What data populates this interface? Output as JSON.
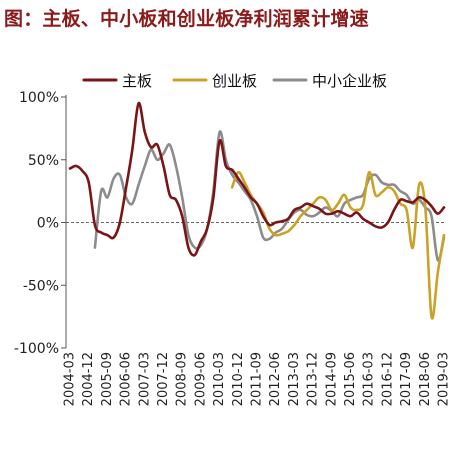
{
  "figure_title": "图：主板、中小板和创业板净利润累计增速",
  "title_color": "#8B1A1A",
  "chart_data": {
    "type": "line",
    "title": "",
    "xlabel": "",
    "ylabel": "",
    "ylim": [
      -100,
      100
    ],
    "yticks": [
      -100,
      -50,
      0,
      50,
      100
    ],
    "ytick_labels": [
      "-100%",
      "-50%",
      "0%",
      "50%",
      "100%"
    ],
    "grid": false,
    "legend_position": "top",
    "x_range": [
      "2004-03",
      "2019-03"
    ],
    "x_tick_labels": [
      "2004-03",
      "2004-12",
      "2005-09",
      "2006-06",
      "2007-03",
      "2007-12",
      "2008-09",
      "2009-06",
      "2010-03",
      "2010-12",
      "2011-09",
      "2012-06",
      "2013-03",
      "2013-12",
      "2014-09",
      "2015-06",
      "2016-03",
      "2016-12",
      "2017-09",
      "2018-06",
      "2019-03"
    ],
    "series": [
      {
        "name": "主板",
        "color": "#7B1416",
        "x": [
          "2004-03",
          "2004-06",
          "2004-09",
          "2004-12",
          "2005-03",
          "2005-06",
          "2005-09",
          "2005-12",
          "2006-03",
          "2006-06",
          "2006-09",
          "2006-12",
          "2007-03",
          "2007-06",
          "2007-09",
          "2007-12",
          "2008-03",
          "2008-06",
          "2008-09",
          "2008-12",
          "2009-03",
          "2009-06",
          "2009-09",
          "2009-12",
          "2010-03",
          "2010-06",
          "2010-09",
          "2010-12",
          "2011-03",
          "2011-06",
          "2011-09",
          "2011-12",
          "2012-03",
          "2012-06",
          "2012-09",
          "2012-12",
          "2013-03",
          "2013-06",
          "2013-09",
          "2013-12",
          "2014-03",
          "2014-06",
          "2014-09",
          "2014-12",
          "2015-03",
          "2015-06",
          "2015-09",
          "2015-12",
          "2016-03",
          "2016-06",
          "2016-09",
          "2016-12",
          "2017-03",
          "2017-06",
          "2017-09",
          "2017-12",
          "2018-03",
          "2018-06",
          "2018-09",
          "2018-12",
          "2019-03"
        ],
        "values": [
          43,
          45,
          41,
          32,
          -2,
          -8,
          -10,
          -12,
          0,
          28,
          58,
          95,
          72,
          60,
          62,
          45,
          22,
          18,
          5,
          -20,
          -26,
          -15,
          -5,
          20,
          65,
          45,
          42,
          35,
          28,
          20,
          15,
          5,
          -2,
          0,
          1,
          3,
          10,
          12,
          15,
          13,
          11,
          7,
          7,
          9,
          7,
          5,
          8,
          3,
          0,
          -3,
          -4,
          0,
          10,
          18,
          17,
          16,
          20,
          18,
          13,
          7,
          12
        ]
      },
      {
        "name": "创业板",
        "color": "#C9A227",
        "x": [
          "2010-09",
          "2010-12",
          "2011-03",
          "2011-06",
          "2011-09",
          "2011-12",
          "2012-03",
          "2012-06",
          "2012-09",
          "2012-12",
          "2013-03",
          "2013-06",
          "2013-09",
          "2013-12",
          "2014-03",
          "2014-06",
          "2014-09",
          "2014-12",
          "2015-03",
          "2015-06",
          "2015-09",
          "2015-12",
          "2016-03",
          "2016-06",
          "2016-09",
          "2016-12",
          "2017-03",
          "2017-06",
          "2017-09",
          "2017-12",
          "2018-03",
          "2018-06",
          "2018-09",
          "2018-12",
          "2019-03"
        ],
        "values": [
          28,
          40,
          32,
          22,
          15,
          8,
          -5,
          -10,
          -9,
          -7,
          -2,
          5,
          10,
          15,
          20,
          18,
          10,
          15,
          22,
          12,
          10,
          14,
          40,
          22,
          24,
          28,
          25,
          15,
          10,
          -20,
          30,
          12,
          -75,
          -40,
          -10
        ]
      },
      {
        "name": "中小企业板",
        "color": "#8C8C8C",
        "x": [
          "2005-03",
          "2005-06",
          "2005-09",
          "2005-12",
          "2006-03",
          "2006-06",
          "2006-09",
          "2006-12",
          "2007-03",
          "2007-06",
          "2007-09",
          "2007-12",
          "2008-03",
          "2008-06",
          "2008-09",
          "2008-12",
          "2009-03",
          "2009-06",
          "2009-09",
          "2009-12",
          "2010-03",
          "2010-06",
          "2010-09",
          "2010-12",
          "2011-03",
          "2011-06",
          "2011-09",
          "2011-12",
          "2012-03",
          "2012-06",
          "2012-09",
          "2012-12",
          "2013-03",
          "2013-06",
          "2013-09",
          "2013-12",
          "2014-03",
          "2014-06",
          "2014-09",
          "2014-12",
          "2015-03",
          "2015-06",
          "2015-09",
          "2015-12",
          "2016-03",
          "2016-06",
          "2016-09",
          "2016-12",
          "2017-03",
          "2017-06",
          "2017-09",
          "2017-12",
          "2018-03",
          "2018-06",
          "2018-09",
          "2018-12",
          "2019-03"
        ],
        "values": [
          -20,
          25,
          20,
          35,
          38,
          20,
          15,
          30,
          45,
          58,
          50,
          55,
          62,
          45,
          20,
          -10,
          -20,
          -18,
          -5,
          25,
          72,
          50,
          38,
          32,
          25,
          18,
          5,
          -12,
          -13,
          -8,
          -5,
          2,
          8,
          10,
          6,
          5,
          8,
          12,
          9,
          5,
          15,
          18,
          20,
          22,
          35,
          38,
          32,
          30,
          30,
          25,
          22,
          15,
          18,
          12,
          5,
          -30,
          -12
        ]
      }
    ]
  }
}
